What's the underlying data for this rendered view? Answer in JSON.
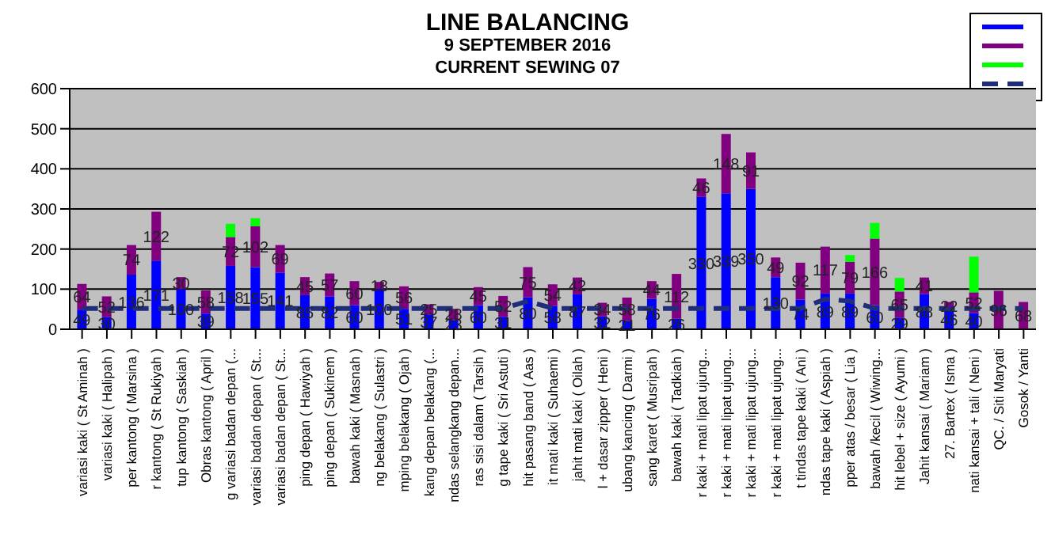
{
  "chart_data": {
    "type": "bar",
    "title": "LINE  BALANCING",
    "subtitle": "9 SEPTEMBER  2016",
    "annotations": [
      "CURRENT  SEWING  07"
    ],
    "categories": [
      "variasi kaki ( St Aminah )",
      "variasi kaki ( Halipah )",
      "per kantong ( Marsina )",
      "r kantong ( St Rukiyah )",
      "tup kantong ( Saskiah )",
      "Obras kantong ( April )",
      "g variasi badan depan (...",
      "variasi badan depan ( St...",
      "variasi badan depan ( St...",
      "ping depan ( Hawiyah )",
      "ping depan ( Sukinem )",
      "bawah kaki ( Masnah )",
      "ng belakang ( Sulastri )",
      "mping belakang ( Ojah )",
      "kang depan belakang (...",
      "ndas selangkang depan...",
      "ras sisi dalam ( Tarsih )",
      "g tape kaki ( Sri Astuti )",
      "hit pasang band ( Aas )",
      "it mati kaki ( Suhaemi )",
      "jahit mati kaki ( Oilah )",
      "l + dasar zipper ( Heni )",
      "ubang kancing ( Darmi )",
      "sang karet ( Musripah )",
      "bawah kaki ( Tadkiah )",
      "r kaki + mati lipat ujung...",
      "r kaki + mati lipat ujung...",
      "r kaki + mati lipat ujung...",
      "r kaki + mati lipat ujung...",
      "t tindas tape kaki ( Ani )",
      "ndas tape kaki ( Aspiah )",
      "pper atas / besar ( Lia )",
      "bawah /kecil ( Wiwing...",
      "hit lebel + size ( Ayumi )",
      "Jahit kansai ( Mariam )",
      "27. Bartex ( Isma )",
      "nati kansai + tali ( Neni )",
      "QC. / Siti Maryati",
      "Gosok / Yanti"
    ],
    "stacked": true,
    "series": [
      {
        "color": "#0000ff",
        "values": [
          49,
          30,
          136,
          171,
          100,
          39,
          158,
          155,
          141,
          85,
          82,
          60,
          100,
          51,
          37,
          23,
          60,
          31,
          80,
          58,
          87,
          32,
          21,
          76,
          26,
          330,
          339,
          350,
          130,
          74,
          89,
          89,
          60,
          29,
          88,
          46,
          40,
          0,
          0
        ],
        "value_labels": [
          "49",
          "30",
          "136",
          "171",
          "100",
          "39",
          "158",
          "155",
          "141",
          "85",
          "82",
          "60",
          "100",
          "51",
          "37",
          "23",
          "60",
          "31",
          "80",
          "58",
          "87",
          "32",
          "21",
          "76",
          "26",
          "330",
          "339",
          "350",
          "130",
          "74",
          "89",
          "89",
          "60",
          "29",
          "88",
          "46",
          "40",
          null,
          null
        ]
      },
      {
        "color": "#800080",
        "values": [
          64,
          52,
          74,
          122,
          30,
          58,
          72,
          102,
          69,
          45,
          57,
          60,
          18,
          56,
          25,
          28,
          45,
          52,
          75,
          54,
          42,
          34,
          58,
          44,
          112,
          46,
          148,
          91,
          49,
          92,
          117,
          79,
          166,
          65,
          41,
          22,
          52,
          96,
          68
        ],
        "value_labels": [
          "64",
          "52",
          "74",
          "122",
          "30",
          "58",
          "72",
          "102",
          "69",
          "45",
          "57",
          "60",
          "18",
          "56",
          "25",
          "28",
          "45",
          "52",
          "75",
          "54",
          "42",
          "34",
          "58",
          "44",
          "112",
          "46",
          "148",
          "91",
          "49",
          "92",
          "117",
          "79",
          "166",
          "65",
          "41",
          "22",
          "52",
          "96",
          "68"
        ]
      },
      {
        "color": "#00ff00",
        "values": [
          0,
          0,
          0,
          0,
          0,
          0,
          33,
          20,
          0,
          0,
          0,
          0,
          0,
          0,
          0,
          0,
          0,
          0,
          0,
          0,
          0,
          0,
          0,
          0,
          0,
          0,
          0,
          0,
          0,
          0,
          0,
          17,
          39,
          34,
          0,
          0,
          89,
          0,
          0
        ]
      },
      {
        "type": "line",
        "color": "#1f2d7a",
        "line_style": "dashed",
        "marker": "none",
        "values": [
          52,
          52,
          52,
          52,
          52,
          52,
          52,
          52,
          52,
          52,
          52,
          52,
          52,
          52,
          52,
          52,
          52,
          52,
          70,
          52,
          52,
          52,
          52,
          52,
          52,
          52,
          52,
          52,
          52,
          52,
          75,
          70,
          52,
          52,
          52,
          52,
          52,
          52,
          52
        ]
      }
    ],
    "ylim": [
      0,
      600
    ],
    "yticks": [
      0,
      100,
      200,
      300,
      400,
      500,
      600
    ],
    "grid": "y"
  }
}
